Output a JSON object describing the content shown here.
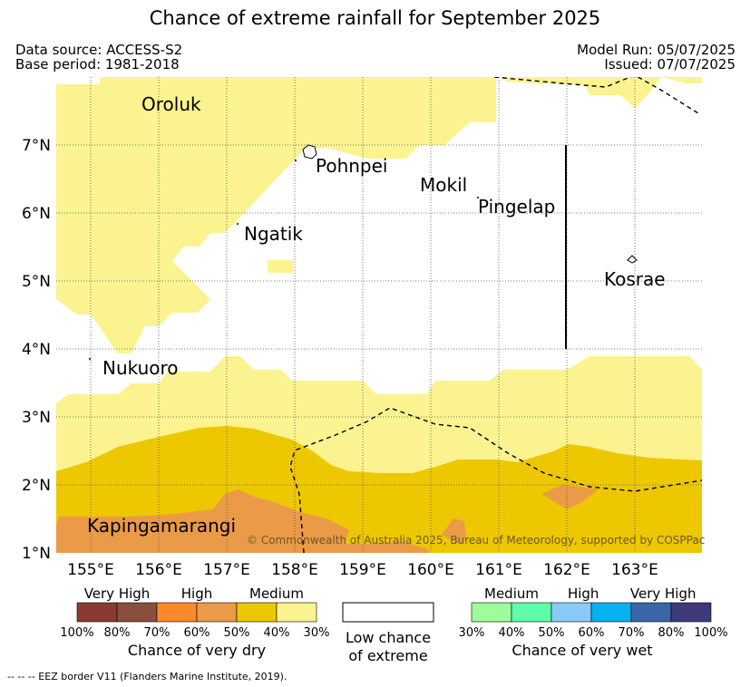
{
  "title": "Chance of extreme rainfall for September 2025",
  "header": {
    "data_source": "Data source: ACCESS-S2",
    "base_period": "Base period: 1981-2018",
    "model_run": "Model Run: 05/07/2025",
    "issued": "Issued: 07/07/2025"
  },
  "map": {
    "lat_ticks": [
      "7°N",
      "6°N",
      "5°N",
      "4°N",
      "3°N",
      "2°N",
      "1°N"
    ],
    "lon_ticks": [
      "155°E",
      "156°E",
      "157°E",
      "158°E",
      "159°E",
      "160°E",
      "161°E",
      "162°E",
      "163°E"
    ],
    "places": {
      "oroluk": "Oroluk",
      "pohnpei": "Pohnpei",
      "mokil": "Mokil",
      "pingelap": "Pingelap",
      "ngatik": "Ngatik",
      "kosrae": "Kosrae",
      "nukuoro": "Nukuoro",
      "kapingamarangi": "Kapingamarangi"
    },
    "copyright": "© Commonwealth of Australia 2025, Bureau of Meteorology, supported by COSPPac",
    "colors": {
      "dry_medium_light": "#fbf38f",
      "dry_medium_dark": "#edc700",
      "dry_high_light": "#eb9a47"
    }
  },
  "legend": {
    "dry": {
      "groups": [
        "Very High",
        "High",
        "Medium"
      ],
      "ticks": [
        "100%",
        "80%",
        "70%",
        "60%",
        "50%",
        "40%",
        "30%"
      ],
      "colors": [
        "#8b3a32",
        "#8a4e3c",
        "#fd8a2a",
        "#eb9a47",
        "#edc700",
        "#fbf38f"
      ],
      "caption": "Chance of very dry"
    },
    "low": {
      "line1": "Low chance",
      "line2": "of extreme"
    },
    "wet": {
      "groups": [
        "Medium",
        "High",
        "Very High"
      ],
      "ticks": [
        "30%",
        "40%",
        "50%",
        "60%",
        "70%",
        "80%",
        "100%"
      ],
      "colors": [
        "#9dfc9b",
        "#5efcab",
        "#89cbf8",
        "#05b1ef",
        "#3a66a9",
        "#3c3a7a"
      ],
      "caption": "Chance of very wet"
    }
  },
  "footnote": "--  --  -- EEZ border V11 (Flanders Marine Institute, 2019)."
}
